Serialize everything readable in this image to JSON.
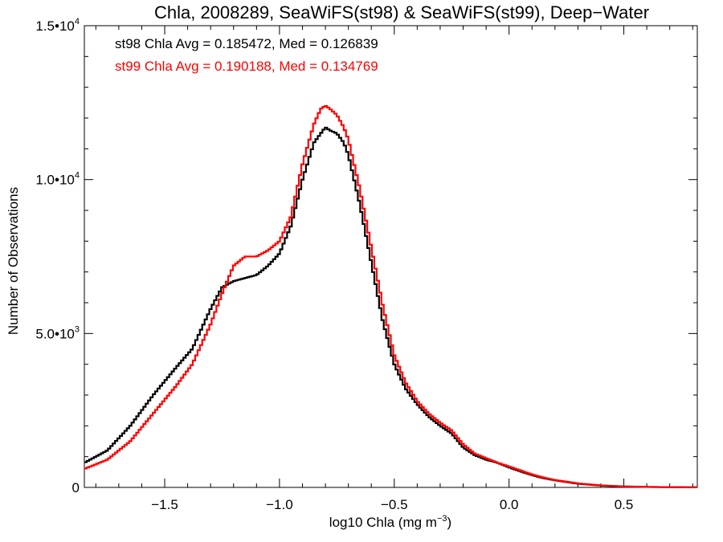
{
  "chart_data": {
    "type": "line",
    "title": "Chla, 2008289, SeaWiFS(st98) & SeaWiFS(st99), Deep−Water",
    "xlabel_main": "log10 Chla (mg m",
    "xlabel_sup": "−3",
    "xlabel_end": ")",
    "ylabel": "Number of Observations",
    "xlim": [
      -1.85,
      0.82
    ],
    "ylim": [
      0,
      15000
    ],
    "x_ticks": [
      {
        "value": -1.5,
        "label": "−1.5"
      },
      {
        "value": -1.0,
        "label": "−1.0"
      },
      {
        "value": -0.5,
        "label": "−0.5"
      },
      {
        "value": 0.0,
        "label": "0.0"
      },
      {
        "value": 0.5,
        "label": "0.5"
      }
    ],
    "y_ticks": [
      {
        "value": 0,
        "base": "0",
        "exp": ""
      },
      {
        "value": 5000,
        "base": "5.0•10",
        "exp": "3"
      },
      {
        "value": 10000,
        "base": "1.0•10",
        "exp": "4"
      },
      {
        "value": 15000,
        "base": "1.5•10",
        "exp": "4"
      }
    ],
    "annotations": [
      {
        "text": "st98 Chla Avg = 0.185472, Med = 0.126839",
        "color": "#000000"
      },
      {
        "text": "st99 Chla Avg = 0.190188, Med = 0.134769",
        "color": "#ff0000"
      }
    ],
    "series": [
      {
        "color": "#000000",
        "x": [
          -1.85,
          -1.75,
          -1.65,
          -1.55,
          -1.45,
          -1.38,
          -1.3,
          -1.25,
          -1.2,
          -1.15,
          -1.1,
          -1.05,
          -1.0,
          -0.95,
          -0.9,
          -0.85,
          -0.82,
          -0.8,
          -0.78,
          -0.75,
          -0.72,
          -0.7,
          -0.65,
          -0.6,
          -0.55,
          -0.5,
          -0.45,
          -0.4,
          -0.35,
          -0.3,
          -0.25,
          -0.2,
          -0.15,
          -0.1,
          -0.05,
          0.0,
          0.05,
          0.1,
          0.15,
          0.2,
          0.3,
          0.4,
          0.5,
          0.6,
          0.7,
          0.82
        ],
        "y": [
          800,
          1200,
          2000,
          3000,
          3900,
          4500,
          5800,
          6500,
          6700,
          6800,
          6900,
          7200,
          7600,
          8500,
          10000,
          11200,
          11500,
          11700,
          11600,
          11500,
          11200,
          10800,
          9200,
          7300,
          5400,
          4000,
          3200,
          2700,
          2300,
          2000,
          1750,
          1300,
          1050,
          900,
          800,
          650,
          520,
          400,
          300,
          230,
          120,
          60,
          30,
          15,
          8,
          3
        ]
      },
      {
        "color": "#ff0000",
        "x": [
          -1.85,
          -1.75,
          -1.65,
          -1.55,
          -1.45,
          -1.38,
          -1.3,
          -1.25,
          -1.2,
          -1.15,
          -1.1,
          -1.05,
          -1.0,
          -0.95,
          -0.9,
          -0.85,
          -0.82,
          -0.8,
          -0.78,
          -0.75,
          -0.72,
          -0.7,
          -0.65,
          -0.6,
          -0.55,
          -0.5,
          -0.45,
          -0.4,
          -0.35,
          -0.3,
          -0.25,
          -0.2,
          -0.15,
          -0.1,
          -0.05,
          0.0,
          0.05,
          0.1,
          0.15,
          0.2,
          0.3,
          0.4,
          0.5,
          0.6,
          0.7,
          0.82
        ],
        "y": [
          600,
          900,
          1500,
          2400,
          3300,
          4000,
          5300,
          6300,
          7200,
          7500,
          7500,
          7700,
          8000,
          8800,
          10500,
          11800,
          12300,
          12400,
          12300,
          12100,
          11700,
          11300,
          9700,
          7800,
          5900,
          4300,
          3400,
          2800,
          2400,
          2100,
          1850,
          1400,
          1100,
          950,
          800,
          680,
          550,
          420,
          320,
          240,
          130,
          65,
          32,
          16,
          8,
          3
        ]
      }
    ]
  }
}
